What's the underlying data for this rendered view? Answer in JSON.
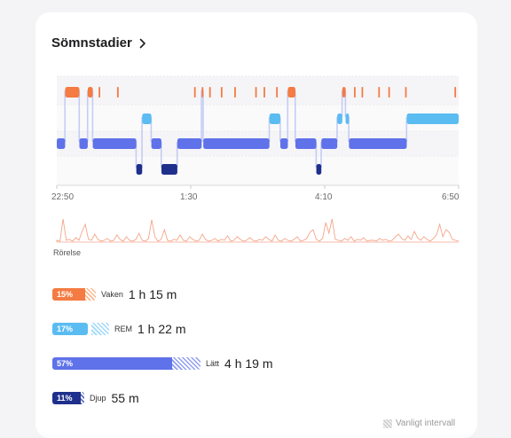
{
  "card": {
    "title": "Sömnstadier"
  },
  "chart_data": {
    "type": "area",
    "title": "",
    "x_ticks": [
      "22:50",
      "1:30",
      "4:10",
      "6:50"
    ],
    "x_range": [
      "22:50",
      "6:50"
    ],
    "stages_order": [
      "Vaken",
      "REM",
      "Lätt",
      "Djup"
    ],
    "stage_colors": {
      "Vaken": "#f47b42",
      "REM": "#5bbcf2",
      "Lätt": "#5f72ea",
      "Djup": "#1f2f8c"
    },
    "segments": [
      {
        "stage": "Lätt",
        "start": "22:50",
        "end": "23:00"
      },
      {
        "stage": "Vaken",
        "start": "23:00",
        "end": "23:17"
      },
      {
        "stage": "Lätt",
        "start": "23:17",
        "end": "23:27"
      },
      {
        "stage": "Vaken",
        "start": "23:27",
        "end": "23:33"
      },
      {
        "stage": "Lätt",
        "start": "23:33",
        "end": "0:25"
      },
      {
        "stage": "Djup",
        "start": "0:25",
        "end": "0:32"
      },
      {
        "stage": "REM",
        "start": "0:32",
        "end": "0:43"
      },
      {
        "stage": "Lätt",
        "start": "0:43",
        "end": "0:55"
      },
      {
        "stage": "Djup",
        "start": "0:55",
        "end": "1:14"
      },
      {
        "stage": "Lätt",
        "start": "1:14",
        "end": "1:43"
      },
      {
        "stage": "Vaken",
        "start": "1:43",
        "end": "1:45"
      },
      {
        "stage": "Lätt",
        "start": "1:45",
        "end": "3:04"
      },
      {
        "stage": "REM",
        "start": "3:04",
        "end": "3:17"
      },
      {
        "stage": "Lätt",
        "start": "3:17",
        "end": "3:26"
      },
      {
        "stage": "Vaken",
        "start": "3:26",
        "end": "3:35"
      },
      {
        "stage": "Lätt",
        "start": "3:35",
        "end": "4:00"
      },
      {
        "stage": "Djup",
        "start": "4:00",
        "end": "4:06"
      },
      {
        "stage": "Lätt",
        "start": "4:06",
        "end": "4:25"
      },
      {
        "stage": "REM",
        "start": "4:25",
        "end": "4:31"
      },
      {
        "stage": "Vaken",
        "start": "4:31",
        "end": "4:35"
      },
      {
        "stage": "REM",
        "start": "4:35",
        "end": "4:39"
      },
      {
        "stage": "Lätt",
        "start": "4:39",
        "end": "5:48"
      },
      {
        "stage": "REM",
        "start": "5:48",
        "end": "6:50"
      }
    ],
    "awake_blips": [
      "23:40",
      "0:02",
      "1:34",
      "1:52",
      "2:06",
      "2:22",
      "2:47",
      "2:57",
      "3:12",
      "4:45",
      "4:54",
      "5:14",
      "5:26",
      "5:46",
      "6:45"
    ],
    "movement_label": "Rörelse",
    "movement_color": "#f4a58a",
    "movement": [
      2,
      1,
      26,
      2,
      3,
      1,
      5,
      2,
      12,
      20,
      3,
      2,
      9,
      3,
      1,
      2,
      4,
      1,
      2,
      8,
      3,
      1,
      6,
      2,
      1,
      3,
      10,
      2,
      1,
      4,
      25,
      6,
      1,
      3,
      14,
      2,
      1,
      3,
      2,
      8,
      2,
      1,
      6,
      3,
      1,
      2,
      9,
      3,
      1,
      2,
      4,
      1,
      3,
      2,
      7,
      1,
      2,
      6,
      3,
      1,
      2,
      5,
      2,
      1,
      3,
      2,
      6,
      3,
      1,
      8,
      2,
      1,
      4,
      2,
      1,
      3,
      6,
      1,
      2,
      4,
      11,
      14,
      3,
      1,
      4,
      22,
      10,
      26,
      3,
      2,
      1,
      4,
      2,
      6,
      1,
      3,
      2,
      5,
      1,
      2,
      2,
      1,
      4,
      2,
      3,
      1,
      2,
      6,
      9,
      4,
      2,
      7,
      3,
      12,
      5,
      2,
      6,
      3,
      1,
      4,
      8,
      20,
      6,
      14,
      11,
      3,
      2,
      1
    ],
    "legend": [
      {
        "name": "Vaken",
        "pct": "15%",
        "duration": "1 h 15 m",
        "color": "#f47b42",
        "hatch": "#f9b98f",
        "fraction": 0.155
      },
      {
        "name": "REM",
        "pct": "17%",
        "duration": "1 h 22 m",
        "color": "#5bbcf2",
        "hatch": "#9fd8f8",
        "fraction": 0.17
      },
      {
        "name": "Lätt",
        "pct": "57%",
        "duration": "4 h 19 m",
        "color": "#5f72ea",
        "hatch": "#8f9df1",
        "fraction": 0.57
      },
      {
        "name": "Djup",
        "pct": "11%",
        "duration": "55 m",
        "color": "#1f2f8c",
        "hatch": "#6270bd",
        "fraction": 0.11
      }
    ]
  },
  "footer": {
    "note": "Vanligt intervall"
  }
}
